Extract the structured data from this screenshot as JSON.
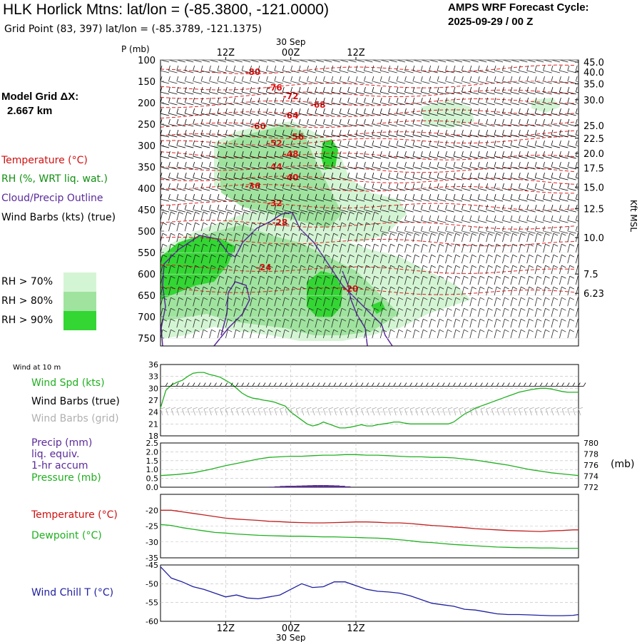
{
  "header": {
    "title": "HLK Horlick Mtns:  lat/lon = (-85.3800, -121.0000)",
    "subtitle": "Grid Point (83, 397) lat/lon = (-85.3789, -121.1375)",
    "cycle_line1": "AMPS WRF Forecast Cycle:",
    "cycle_line2": "2025-09-29 / 00  Z"
  },
  "left_panel": {
    "grid_label": "Model Grid ΔX:",
    "grid_value": "2.667 km",
    "legend": [
      {
        "text": "Temperature (°C)",
        "color": "#d01010"
      },
      {
        "text": "RH (%, WRT liq. wat.)",
        "color": "#109010"
      },
      {
        "text": "Cloud/Precip Outline",
        "color": "#5a2a9a"
      },
      {
        "text": "Wind Barbs (kts) (true)",
        "color": "#000000"
      }
    ],
    "rh_legend": [
      {
        "text": "RH > 70%",
        "color": "#d4f5d4"
      },
      {
        "text": "RH > 80%",
        "color": "#9fe39f"
      },
      {
        "text": "RH > 90%",
        "color": "#33d633"
      }
    ]
  },
  "time_axis": {
    "ticks": [
      "12Z",
      "00Z",
      "12Z"
    ],
    "date_label": "30 Sep"
  },
  "chart_data": [
    {
      "type": "line",
      "panel": "cross-section",
      "ylabel": "P (mb)",
      "y_ticks": [
        100,
        150,
        200,
        250,
        300,
        350,
        400,
        450,
        500,
        550,
        600,
        650,
        700,
        750
      ],
      "y_right_label": "Kft MSL",
      "y_right_ticks": [
        "45.0",
        "40.0",
        "35.0",
        "30.0",
        "25.0",
        "22.5",
        "20.0",
        "17.5",
        "15.0",
        "12.5",
        "10.0",
        "7.5",
        "6.23"
      ],
      "y_right_pressures": [
        105,
        128,
        156,
        193,
        253,
        283,
        318,
        352,
        397,
        447,
        515,
        600,
        645
      ],
      "temperature_labels": [
        {
          "value": "-80",
          "hour": 17,
          "p": 128
        },
        {
          "value": "-76",
          "hour": 21,
          "p": 165
        },
        {
          "value": "-72",
          "hour": 24,
          "p": 185
        },
        {
          "value": "-68",
          "hour": 29,
          "p": 205
        },
        {
          "value": "-64",
          "hour": 24,
          "p": 230
        },
        {
          "value": "-60",
          "hour": 18,
          "p": 255
        },
        {
          "value": "-56",
          "hour": 25,
          "p": 280
        },
        {
          "value": "-52",
          "hour": 21,
          "p": 295
        },
        {
          "value": "-48",
          "hour": 24,
          "p": 320
        },
        {
          "value": "-44",
          "hour": 21,
          "p": 350
        },
        {
          "value": "-40",
          "hour": 24,
          "p": 375
        },
        {
          "value": "-36",
          "hour": 17,
          "p": 395
        },
        {
          "value": "-32",
          "hour": 21,
          "p": 435
        },
        {
          "value": "-28",
          "hour": 22,
          "p": 480
        },
        {
          "value": "-24",
          "hour": 19,
          "p": 585
        },
        {
          "value": "-20",
          "hour": 35,
          "p": 635
        }
      ],
      "rh_levels": [
        "RH > 70%",
        "RH > 80%",
        "RH > 90%"
      ]
    },
    {
      "type": "line",
      "panel": "wind",
      "title": "Wind at 10 m",
      "ylim": [
        18,
        36
      ],
      "y_ticks": [
        18,
        21,
        24,
        27,
        30,
        33,
        36
      ],
      "legend": [
        {
          "text": "Wind Spd (kts)",
          "color": "#20b020"
        },
        {
          "text": "Wind Barbs (true)",
          "color": "#000000"
        },
        {
          "text": "Wind Barbs (grid)",
          "color": "#b0b0b0"
        }
      ],
      "series": [
        {
          "name": "Wind Spd (kts)",
          "color": "#20b020",
          "x": [
            0,
            1,
            2,
            3,
            4,
            5,
            6,
            7,
            8,
            9,
            10,
            11,
            12,
            13,
            14,
            15,
            16,
            17,
            18,
            19,
            20,
            21,
            22,
            23,
            24,
            25,
            26,
            27,
            28,
            29,
            30,
            31,
            32,
            33,
            34,
            35,
            36,
            37,
            38,
            39,
            40,
            41,
            42,
            43,
            44,
            45,
            46,
            47,
            48,
            49,
            50,
            51,
            52,
            53,
            54,
            55,
            56,
            57,
            58,
            59,
            60,
            61,
            62,
            63,
            64,
            65,
            66,
            67,
            68,
            69,
            70,
            71,
            72,
            73,
            74,
            75,
            76,
            77
          ],
          "values": [
            25,
            29.5,
            30.8,
            31.5,
            32,
            33,
            33.8,
            34,
            34,
            33.5,
            33.2,
            32.8,
            32,
            31.2,
            30,
            28.8,
            28,
            27.5,
            27.3,
            27,
            26.8,
            26.5,
            26,
            25.5,
            24,
            23,
            22,
            21,
            20.5,
            20.8,
            21.5,
            21,
            20.5,
            20,
            20,
            20.2,
            20.5,
            20.8,
            20.5,
            20.5,
            20.8,
            21,
            21.2,
            21.5,
            21.5,
            21.2,
            21,
            21,
            21,
            21,
            21,
            21,
            21,
            21,
            21.5,
            22.5,
            23.5,
            24.2,
            25,
            25.5,
            26,
            26.5,
            27,
            27.5,
            28,
            28.5,
            29,
            29.3,
            29.6,
            29.8,
            30,
            30,
            29.8,
            29.5,
            29.2,
            29,
            29,
            29
          ]
        }
      ]
    },
    {
      "type": "line",
      "panel": "precip-pressure",
      "ylim_left": [
        0,
        2.5
      ],
      "y_ticks_left": [
        0.0,
        0.5,
        1.0,
        1.5,
        2.0,
        2.5
      ],
      "ylim_right": [
        772,
        780
      ],
      "y_ticks_right": [
        772,
        774,
        776,
        778,
        780
      ],
      "right_unit": "(mb)",
      "legend": [
        {
          "text": "Precip (mm)",
          "color": "#5a2a9a"
        },
        {
          "text": "liq. equiv.",
          "color": "#5a2a9a"
        },
        {
          "text": "1-hr accum",
          "color": "#5a2a9a"
        },
        {
          "text": "Pressure (mb)",
          "color": "#20b020"
        }
      ],
      "series": [
        {
          "name": "Pressure (mb)",
          "color": "#20b020",
          "x": [
            0,
            3,
            6,
            9,
            12,
            14,
            16,
            18,
            20,
            22,
            24,
            26,
            28,
            30,
            32,
            34,
            36,
            38,
            40,
            42,
            44,
            46,
            48,
            50,
            52,
            54,
            56,
            58,
            60,
            62,
            64,
            66,
            68,
            70,
            72,
            74,
            76,
            77
          ],
          "values": [
            774.1,
            774.3,
            774.6,
            775.2,
            775.9,
            776.3,
            776.7,
            777.1,
            777.4,
            777.5,
            777.6,
            777.6,
            777.7,
            777.8,
            777.8,
            777.9,
            777.9,
            777.8,
            777.8,
            777.7,
            777.6,
            777.5,
            777.5,
            777.4,
            777.4,
            777.3,
            777.1,
            776.9,
            776.6,
            776.3,
            776.0,
            775.6,
            775.2,
            774.9,
            774.6,
            774.4,
            774.2,
            774.1
          ]
        },
        {
          "name": "Precip (mm)",
          "color": "#5a2a9a",
          "x": [
            20,
            21,
            22,
            23,
            24,
            25,
            26,
            27,
            28,
            29,
            30,
            31,
            32,
            33,
            34
          ],
          "values": [
            0.03,
            0.05,
            0.07,
            0.08,
            0.08,
            0.09,
            0.1,
            0.11,
            0.12,
            0.12,
            0.12,
            0.11,
            0.1,
            0.08,
            0.05
          ]
        }
      ]
    },
    {
      "type": "line",
      "panel": "temperature",
      "ylim": [
        -35,
        -15
      ],
      "y_ticks": [
        -35,
        -30,
        -25,
        -20
      ],
      "legend": [
        {
          "text": "Temperature (°C)",
          "color": "#d01010"
        },
        {
          "text": "Dewpoint (°C)",
          "color": "#20b020"
        }
      ],
      "series": [
        {
          "name": "Temperature (°C)",
          "color": "#c02020",
          "x": [
            0,
            2,
            4,
            6,
            8,
            10,
            12,
            14,
            16,
            18,
            20,
            22,
            24,
            26,
            28,
            30,
            32,
            34,
            36,
            38,
            40,
            42,
            44,
            46,
            48,
            50,
            52,
            54,
            56,
            58,
            60,
            62,
            64,
            66,
            68,
            70,
            72,
            74,
            76,
            77
          ],
          "values": [
            -20,
            -20,
            -20.5,
            -21,
            -21.5,
            -22,
            -22.5,
            -22.8,
            -23,
            -23.2,
            -23.5,
            -23.6,
            -23.8,
            -23.9,
            -24,
            -24,
            -23.9,
            -23.8,
            -23.7,
            -23.7,
            -23.8,
            -24,
            -24,
            -24.2,
            -24.5,
            -24.8,
            -25,
            -25.3,
            -25.5,
            -25.8,
            -26,
            -26.2,
            -26.4,
            -26.5,
            -26.6,
            -26.7,
            -26.5,
            -26.4,
            -26.2,
            -26.2
          ]
        },
        {
          "name": "Dewpoint (°C)",
          "color": "#20b020",
          "x": [
            0,
            2,
            4,
            6,
            8,
            10,
            12,
            14,
            16,
            18,
            20,
            22,
            24,
            26,
            28,
            30,
            32,
            34,
            36,
            38,
            40,
            42,
            44,
            46,
            48,
            50,
            52,
            54,
            56,
            58,
            60,
            62,
            64,
            66,
            68,
            70,
            72,
            74,
            76,
            77
          ],
          "values": [
            -24.5,
            -24.8,
            -25.5,
            -26,
            -26.5,
            -27,
            -27.2,
            -27.5,
            -27.7,
            -27.9,
            -28,
            -28.1,
            -28.2,
            -28.2,
            -28.3,
            -28.4,
            -28.4,
            -28.5,
            -28.6,
            -28.7,
            -28.8,
            -29,
            -29.3,
            -29.6,
            -30,
            -30.2,
            -30.5,
            -30.8,
            -31,
            -31.2,
            -31.4,
            -31.6,
            -31.7,
            -31.8,
            -31.8,
            -31.9,
            -31.9,
            -32,
            -32,
            -32
          ]
        }
      ]
    },
    {
      "type": "line",
      "panel": "wind-chill",
      "ylim": [
        -60,
        -45
      ],
      "y_ticks": [
        -60,
        -55,
        -50,
        -45
      ],
      "legend": [
        {
          "text": "Wind Chill T (°C)",
          "color": "#2020a0"
        }
      ],
      "series": [
        {
          "name": "Wind Chill T (°C)",
          "color": "#2020a0",
          "x": [
            0,
            2,
            4,
            6,
            8,
            10,
            12,
            14,
            16,
            18,
            20,
            22,
            24,
            26,
            28,
            30,
            32,
            34,
            36,
            38,
            40,
            42,
            44,
            46,
            48,
            50,
            52,
            54,
            56,
            58,
            60,
            62,
            64,
            66,
            68,
            70,
            72,
            74,
            76,
            77
          ],
          "values": [
            -45.5,
            -48.5,
            -49.5,
            -50.8,
            -51.5,
            -52.5,
            -53.5,
            -53,
            -53.8,
            -54,
            -53.5,
            -53,
            -51.5,
            -50,
            -51,
            -50.8,
            -49.5,
            -49.5,
            -50.5,
            -51.5,
            -52,
            -52.2,
            -52.5,
            -53.2,
            -54.2,
            -55.2,
            -55.6,
            -56,
            -56.8,
            -57,
            -57.5,
            -58,
            -58.2,
            -58.2,
            -58.3,
            -58.4,
            -58.5,
            -58.5,
            -58.4,
            -58.2
          ]
        }
      ]
    }
  ]
}
